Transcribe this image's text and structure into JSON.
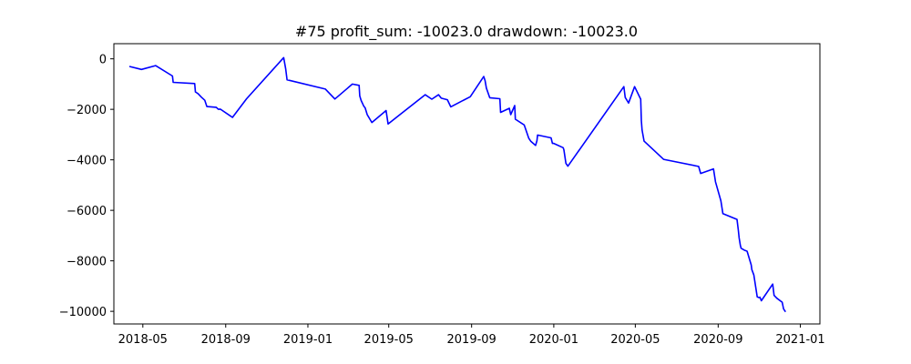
{
  "chart_data": {
    "type": "line",
    "title": "#75   profit_sum: -10023.0 drawdown: -10023.0",
    "xlabel": "",
    "ylabel": "",
    "grid": false,
    "xlim": [
      "2018-03-19",
      "2021-01-30"
    ],
    "ylim": [
      -10500,
      600
    ],
    "x_ticks": [
      "2018-05",
      "2018-09",
      "2019-01",
      "2019-05",
      "2019-09",
      "2020-01",
      "2020-05",
      "2020-09",
      "2021-01"
    ],
    "x_tick_dates": [
      "2018-05-01",
      "2018-09-01",
      "2019-01-01",
      "2019-05-01",
      "2019-09-01",
      "2020-01-01",
      "2020-05-01",
      "2020-09-01",
      "2021-01-01"
    ],
    "y_ticks": [
      0,
      -2000,
      -4000,
      -6000,
      -8000,
      -10000
    ],
    "y_tick_labels": [
      "0",
      "−2000",
      "−4000",
      "−6000",
      "−8000",
      "−10000"
    ],
    "series": [
      {
        "color": "#0000ff",
        "x": [
          "2018-04-11",
          "2018-04-29",
          "2018-05-20",
          "2018-06-14",
          "2018-06-15",
          "2018-07-17",
          "2018-07-18",
          "2018-07-22",
          "2018-07-27",
          "2018-08-01",
          "2018-08-04",
          "2018-08-18",
          "2018-08-21",
          "2018-08-24",
          "2018-09-11",
          "2018-10-02",
          "2018-11-26",
          "2018-11-29",
          "2018-12-01",
          "2019-01-27",
          "2019-02-10",
          "2019-03-08",
          "2019-03-18",
          "2019-03-19",
          "2019-03-21",
          "2019-03-25",
          "2019-03-27",
          "2019-03-30",
          "2019-04-06",
          "2019-04-27",
          "2019-04-30",
          "2019-06-24",
          "2019-07-04",
          "2019-07-14",
          "2019-07-18",
          "2019-07-27",
          "2019-08-01",
          "2019-08-30",
          "2019-09-19",
          "2019-09-21",
          "2019-09-23",
          "2019-09-28",
          "2019-10-13",
          "2019-10-14",
          "2019-10-27",
          "2019-10-29",
          "2019-11-04",
          "2019-11-05",
          "2019-11-18",
          "2019-11-25",
          "2019-11-28",
          "2019-12-05",
          "2019-12-07",
          "2019-12-08",
          "2019-12-28",
          "2019-12-30",
          "2020-01-01",
          "2020-01-15",
          "2020-01-16",
          "2020-01-19",
          "2020-01-22",
          "2020-04-14",
          "2020-04-16",
          "2020-04-21",
          "2020-04-30",
          "2020-05-09",
          "2020-05-10",
          "2020-05-11",
          "2020-05-14",
          "2020-06-12",
          "2020-08-03",
          "2020-08-06",
          "2020-08-25",
          "2020-08-28",
          "2020-09-05",
          "2020-09-06",
          "2020-09-08",
          "2020-09-29",
          "2020-10-01",
          "2020-10-02",
          "2020-10-04",
          "2020-10-05",
          "2020-10-08",
          "2020-10-10",
          "2020-10-13",
          "2020-10-14",
          "2020-10-20",
          "2020-10-21",
          "2020-10-24",
          "2020-10-29",
          "2020-11-01",
          "2020-11-02",
          "2020-11-04",
          "2020-11-21",
          "2020-11-23",
          "2020-11-27",
          "2020-12-05",
          "2020-12-07",
          "2020-12-10"
        ],
        "y": [
          -300,
          -420,
          -270,
          -680,
          -930,
          -980,
          -1310,
          -1380,
          -1520,
          -1640,
          -1890,
          -1920,
          -2000,
          -1990,
          -2320,
          -1580,
          50,
          -400,
          -830,
          -1200,
          -1590,
          -1000,
          -1050,
          -1470,
          -1650,
          -1880,
          -1940,
          -2210,
          -2520,
          -2050,
          -2580,
          -1420,
          -1600,
          -1420,
          -1560,
          -1620,
          -1900,
          -1500,
          -700,
          -870,
          -1160,
          -1540,
          -1580,
          -2120,
          -1960,
          -2210,
          -1850,
          -2390,
          -2620,
          -3150,
          -3270,
          -3430,
          -3240,
          -3020,
          -3130,
          -3350,
          -3350,
          -3520,
          -3610,
          -4140,
          -4250,
          -1100,
          -1530,
          -1750,
          -1100,
          -1600,
          -2440,
          -2820,
          -3260,
          -3980,
          -4260,
          -4540,
          -4360,
          -4870,
          -5620,
          -5780,
          -6130,
          -6360,
          -6800,
          -7080,
          -7390,
          -7500,
          -7550,
          -7580,
          -7610,
          -7620,
          -8160,
          -8350,
          -8560,
          -9430,
          -9460,
          -9440,
          -9580,
          -8920,
          -9370,
          -9480,
          -9640,
          -9900,
          -10020
        ]
      }
    ]
  }
}
